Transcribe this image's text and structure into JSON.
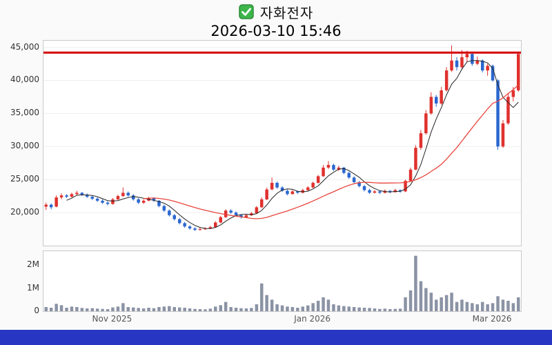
{
  "header": {
    "title": "자화전자",
    "datetime": "2026-03-10 15:46",
    "checkbox": {
      "checked": true,
      "fill": "#3cb54a",
      "border": "#2e8b3a",
      "check_color": "#ffffff"
    }
  },
  "chart_data": {
    "type": "candlestick",
    "title": "자화전자",
    "subtitle": "2026-03-10 15:46",
    "price_axis": {
      "min": 15000,
      "max": 46000,
      "ticks": [
        {
          "value": 45000,
          "label": "45,000"
        },
        {
          "value": 40000,
          "label": "40,000"
        },
        {
          "value": 35000,
          "label": "35,000"
        },
        {
          "value": 30000,
          "label": "30,000"
        },
        {
          "value": 25000,
          "label": "25,000"
        },
        {
          "value": 20000,
          "label": "20,000"
        }
      ]
    },
    "volume_axis": {
      "max": 2600000,
      "ticks": [
        {
          "value": 2000000,
          "label": "2M"
        },
        {
          "value": 1000000,
          "label": "1M"
        },
        {
          "value": 0,
          "label": "0"
        }
      ]
    },
    "x_labels": [
      {
        "label": "Nov 2025",
        "index": 13
      },
      {
        "label": "Jan 2026",
        "index": 52
      },
      {
        "label": "Mar 2026",
        "index": 87
      }
    ],
    "resistance_line": {
      "price": 44200,
      "color": "#d40000",
      "width": 3
    },
    "ma_short": {
      "window": 5,
      "color": "#222222",
      "width": 1
    },
    "ma_long": {
      "window": 20,
      "color": "#e8453c",
      "width": 1.3
    },
    "colors": {
      "up": "#e0312e",
      "down": "#2b67cf",
      "volume": "#8b93a5",
      "grid": "#efefef"
    },
    "candles": [
      [
        20900,
        21500,
        20400,
        21200,
        180000
      ],
      [
        21200,
        21400,
        20500,
        20800,
        150000
      ],
      [
        20900,
        22600,
        20800,
        22300,
        320000
      ],
      [
        22300,
        22900,
        22000,
        22600,
        260000
      ],
      [
        22600,
        22800,
        22200,
        22400,
        150000
      ],
      [
        22400,
        23000,
        22300,
        22800,
        200000
      ],
      [
        22800,
        23300,
        22600,
        23000,
        180000
      ],
      [
        23000,
        23100,
        22500,
        22700,
        140000
      ],
      [
        22700,
        22900,
        22200,
        22400,
        120000
      ],
      [
        22400,
        22600,
        21900,
        22100,
        130000
      ],
      [
        22100,
        22300,
        21600,
        21800,
        110000
      ],
      [
        21800,
        22000,
        21300,
        21500,
        100000
      ],
      [
        21500,
        21700,
        21100,
        21300,
        90000
      ],
      [
        21300,
        22200,
        21200,
        22000,
        160000
      ],
      [
        22000,
        22700,
        21900,
        22500,
        200000
      ],
      [
        22500,
        23800,
        22400,
        23000,
        350000
      ],
      [
        23000,
        23200,
        22400,
        22600,
        180000
      ],
      [
        22600,
        22800,
        21800,
        22000,
        160000
      ],
      [
        22000,
        22200,
        21300,
        21500,
        140000
      ],
      [
        21500,
        22000,
        21300,
        21800,
        120000
      ],
      [
        21800,
        22400,
        21700,
        22200,
        150000
      ],
      [
        22200,
        22300,
        21600,
        21800,
        130000
      ],
      [
        21800,
        21900,
        20800,
        21000,
        180000
      ],
      [
        21000,
        21200,
        20100,
        20300,
        200000
      ],
      [
        20300,
        20500,
        19400,
        19600,
        220000
      ],
      [
        19600,
        19800,
        18800,
        19000,
        180000
      ],
      [
        19000,
        19200,
        18200,
        18400,
        160000
      ],
      [
        18400,
        18600,
        17700,
        17900,
        150000
      ],
      [
        17900,
        18100,
        17400,
        17600,
        120000
      ],
      [
        17600,
        17800,
        17200,
        17400,
        100000
      ],
      [
        17400,
        17700,
        17300,
        17500,
        90000
      ],
      [
        17500,
        17800,
        17400,
        17600,
        80000
      ],
      [
        17600,
        18000,
        17500,
        17800,
        110000
      ],
      [
        17800,
        18700,
        17700,
        18500,
        200000
      ],
      [
        18500,
        19500,
        18400,
        19300,
        260000
      ],
      [
        19300,
        20500,
        19200,
        20300,
        400000
      ],
      [
        20300,
        20500,
        19800,
        20000,
        180000
      ],
      [
        20000,
        20200,
        19400,
        19600,
        150000
      ],
      [
        19600,
        19800,
        19100,
        19300,
        130000
      ],
      [
        19300,
        19800,
        19200,
        19600,
        120000
      ],
      [
        19600,
        20100,
        19500,
        19900,
        140000
      ],
      [
        19900,
        21000,
        19800,
        20800,
        300000
      ],
      [
        20800,
        22300,
        20700,
        22000,
        1200000
      ],
      [
        22000,
        23800,
        21900,
        23500,
        700000
      ],
      [
        23500,
        25300,
        23400,
        24500,
        500000
      ],
      [
        24500,
        24700,
        23600,
        23800,
        300000
      ],
      [
        23800,
        24000,
        23100,
        23300,
        250000
      ],
      [
        23300,
        23500,
        22600,
        22800,
        200000
      ],
      [
        22800,
        23400,
        22700,
        23200,
        180000
      ],
      [
        23200,
        23300,
        22800,
        23000,
        150000
      ],
      [
        23000,
        23600,
        22900,
        23400,
        200000
      ],
      [
        23400,
        24000,
        23300,
        23800,
        250000
      ],
      [
        23800,
        24700,
        23700,
        24500,
        350000
      ],
      [
        24500,
        25700,
        24400,
        25500,
        450000
      ],
      [
        25500,
        27200,
        25400,
        26800,
        600000
      ],
      [
        26800,
        27800,
        26600,
        27200,
        500000
      ],
      [
        27200,
        27400,
        26300,
        26500,
        300000
      ],
      [
        26500,
        27100,
        26300,
        26800,
        250000
      ],
      [
        26800,
        26900,
        25800,
        26000,
        220000
      ],
      [
        26000,
        26200,
        25100,
        25300,
        200000
      ],
      [
        25300,
        25500,
        24400,
        24600,
        180000
      ],
      [
        24600,
        24800,
        23800,
        24000,
        160000
      ],
      [
        24000,
        24200,
        23200,
        23400,
        150000
      ],
      [
        23400,
        23600,
        22800,
        23000,
        140000
      ],
      [
        23000,
        23400,
        22900,
        23200,
        120000
      ],
      [
        23200,
        23300,
        22800,
        23000,
        100000
      ],
      [
        23000,
        23500,
        22900,
        23300,
        110000
      ],
      [
        23300,
        23400,
        22900,
        23100,
        90000
      ],
      [
        23100,
        23600,
        23000,
        23400,
        100000
      ],
      [
        23400,
        23500,
        23000,
        23200,
        110000
      ],
      [
        23200,
        25000,
        23100,
        24800,
        600000
      ],
      [
        24800,
        26800,
        24700,
        26500,
        900000
      ],
      [
        26500,
        30200,
        26400,
        29800,
        2400000
      ],
      [
        29800,
        32500,
        29500,
        32000,
        1300000
      ],
      [
        32000,
        35500,
        31800,
        35000,
        1000000
      ],
      [
        35000,
        38200,
        34800,
        37500,
        800000
      ],
      [
        37500,
        37800,
        36000,
        36500,
        500000
      ],
      [
        36500,
        39000,
        36300,
        38500,
        600000
      ],
      [
        38500,
        42000,
        38300,
        41500,
        700000
      ],
      [
        41500,
        45300,
        41300,
        43000,
        800000
      ],
      [
        43000,
        43500,
        41500,
        42000,
        400000
      ],
      [
        42000,
        44600,
        41800,
        43500,
        500000
      ],
      [
        43500,
        44500,
        42800,
        44000,
        400000
      ],
      [
        44000,
        44200,
        42200,
        42500,
        350000
      ],
      [
        42500,
        43600,
        42300,
        43000,
        300000
      ],
      [
        43000,
        43200,
        41200,
        41500,
        400000
      ],
      [
        41500,
        42500,
        40700,
        42200,
        300000
      ],
      [
        42200,
        42400,
        39800,
        40000,
        350000
      ],
      [
        40000,
        40200,
        29500,
        30000,
        650000
      ],
      [
        30000,
        34000,
        29800,
        33500,
        500000
      ],
      [
        33500,
        38000,
        33300,
        37500,
        450000
      ],
      [
        37500,
        39000,
        36800,
        38500,
        350000
      ],
      [
        38500,
        44300,
        38300,
        44000,
        600000
      ]
    ]
  }
}
